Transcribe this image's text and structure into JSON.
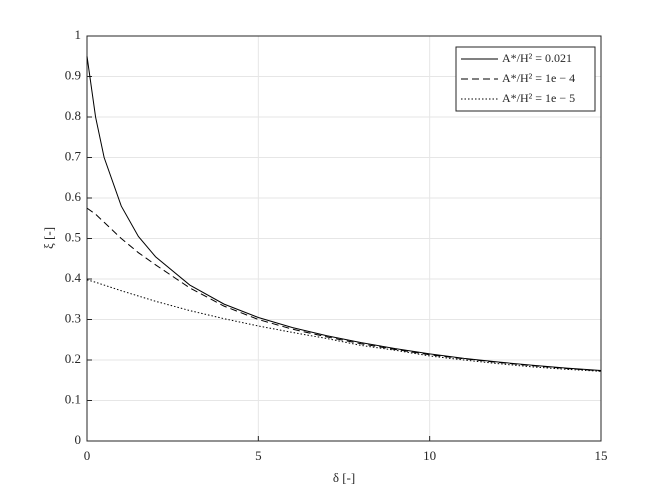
{
  "chart_data": {
    "type": "line",
    "xlabel": "δ [-]",
    "ylabel": "ξ [-]",
    "x": [
      0,
      0.25,
      0.5,
      1,
      1.5,
      2,
      3,
      4,
      5,
      6,
      7,
      8,
      9,
      10,
      11,
      12,
      13,
      14,
      15
    ],
    "series": [
      {
        "name": "A*/H² = 0.021",
        "color": "#000000",
        "dash": "solid",
        "values": [
          0.95,
          0.8,
          0.7,
          0.58,
          0.505,
          0.455,
          0.385,
          0.338,
          0.305,
          0.28,
          0.26,
          0.243,
          0.228,
          0.215,
          0.204,
          0.195,
          0.187,
          0.18,
          0.174
        ]
      },
      {
        "name": "A*/H² = 1e − 4",
        "color": "#000000",
        "dash": "dashed",
        "values": [
          0.575,
          0.56,
          0.54,
          0.5,
          0.465,
          0.435,
          0.378,
          0.333,
          0.3,
          0.276,
          0.257,
          0.24,
          0.226,
          0.213,
          0.203,
          0.194,
          0.186,
          0.179,
          0.173
        ]
      },
      {
        "name": "A*/H² = 1e − 5",
        "color": "#000000",
        "dash": "dotted",
        "values": [
          0.398,
          0.392,
          0.385,
          0.371,
          0.358,
          0.345,
          0.322,
          0.302,
          0.284,
          0.268,
          0.253,
          0.236,
          0.224,
          0.21,
          0.2,
          0.191,
          0.183,
          0.177,
          0.172
        ]
      }
    ],
    "xlim": [
      0,
      15
    ],
    "xticks": [
      0,
      5,
      10,
      15
    ],
    "ylim": [
      0,
      1
    ],
    "yticks": [
      0,
      0.1,
      0.2,
      0.3,
      0.4,
      0.5,
      0.6,
      0.7,
      0.8,
      0.9,
      1
    ],
    "grid": true,
    "legend": "top-right"
  }
}
